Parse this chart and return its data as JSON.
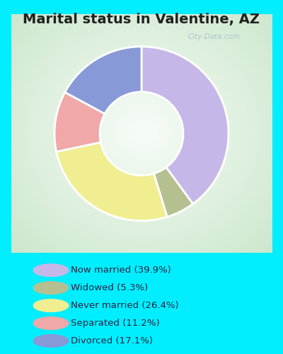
{
  "title": "Marital status in Valentine, AZ",
  "slices": [
    {
      "label": "Now married (39.9%)",
      "value": 39.9,
      "color": "#c5b8e8"
    },
    {
      "label": "Widowed (5.3%)",
      "value": 5.3,
      "color": "#b5c090"
    },
    {
      "label": "Never married (26.4%)",
      "value": 26.4,
      "color": "#f0ee90"
    },
    {
      "label": "Separated (11.2%)",
      "value": 11.2,
      "color": "#f0a8a8"
    },
    {
      "label": "Divorced (17.1%)",
      "value": 17.1,
      "color": "#8899d8"
    }
  ],
  "bg_outer": "#00eeff",
  "bg_chart_gradient_left": "#c8e8c8",
  "bg_chart_gradient_right": "#e8f0e8",
  "legend_bg": "#00eeff",
  "title_color": "#222222",
  "legend_text_color": "#222244",
  "watermark": "City-Data.com",
  "figsize": [
    4.0,
    5.0
  ],
  "dpi": 100,
  "donut_width": 0.52,
  "startangle": 90,
  "title_fontsize": 14
}
